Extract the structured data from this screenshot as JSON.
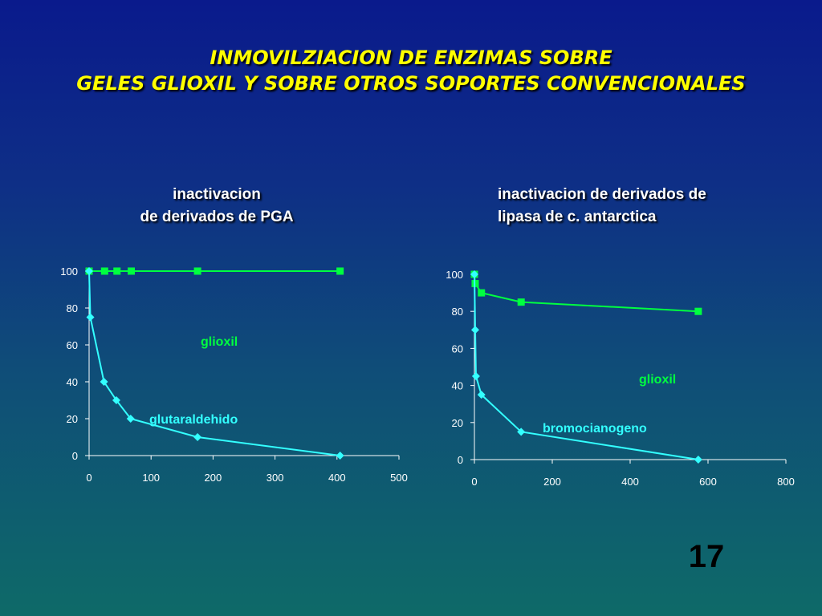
{
  "slide": {
    "title_line1": "INMOVILZIACION DE ENZIMAS SOBRE",
    "title_line2": "GELES GLIOXIL Y SOBRE OTROS SOPORTES CONVENCIONALES",
    "page_number": "17"
  },
  "colors": {
    "glioxil": "#00ff40",
    "other": "#33ffff",
    "axis": "#ffffff"
  },
  "chart_data": [
    {
      "type": "line",
      "title_line1": "inactivacion",
      "title_line2": "de derivados de PGA",
      "xlim": [
        0,
        500
      ],
      "ylim": [
        0,
        100
      ],
      "xticks": [
        0,
        100,
        200,
        300,
        400,
        500
      ],
      "yticks": [
        0,
        20,
        40,
        60,
        80,
        100
      ],
      "grid": false,
      "series": [
        {
          "name": "glioxil",
          "marker": "square",
          "x": [
            0,
            25,
            45,
            68,
            175,
            405
          ],
          "y": [
            100,
            100,
            100,
            100,
            100,
            100
          ]
        },
        {
          "name": "glutaraldehido",
          "marker": "diamond",
          "x": [
            0,
            2,
            24,
            44,
            67,
            175,
            405
          ],
          "y": [
            100,
            75,
            40,
            30,
            20,
            10,
            0
          ]
        }
      ]
    },
    {
      "type": "line",
      "title_line1": "inactivacion de derivados de",
      "title_line2": "lipasa de c. antarctica",
      "xlim": [
        0,
        800
      ],
      "ylim": [
        0,
        100
      ],
      "xticks": [
        0,
        200,
        400,
        600,
        800
      ],
      "yticks": [
        0,
        20,
        40,
        60,
        80,
        100
      ],
      "grid": false,
      "series": [
        {
          "name": "glioxil",
          "marker": "square",
          "x": [
            0,
            2,
            18,
            120,
            575
          ],
          "y": [
            100,
            95,
            90,
            85,
            80
          ]
        },
        {
          "name": "bromocianogeno",
          "marker": "diamond",
          "x": [
            0,
            2,
            4,
            18,
            120,
            575
          ],
          "y": [
            100,
            70,
            45,
            35,
            15,
            0
          ]
        }
      ]
    }
  ]
}
